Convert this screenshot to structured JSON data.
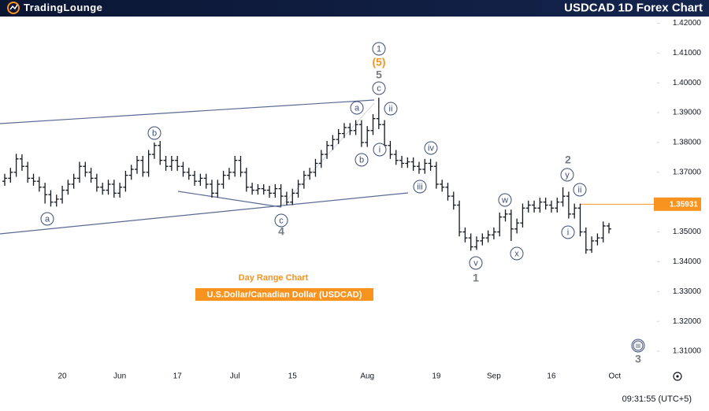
{
  "chart_data": {
    "type": "ohlc",
    "title": "USDCAD 1D Forex Chart",
    "logo": "TradingLounge",
    "subtitle": "Day Range Chart",
    "caption": "U.S.Dollar/Canadian Dollar (USDCAD)",
    "timestamp": "09:31:55 (UTC+5)",
    "color": "#131722",
    "categories": [
      null,
      null,
      null,
      null,
      null,
      null,
      null,
      null,
      null,
      null,
      "20",
      null,
      null,
      null,
      null,
      null,
      null,
      null,
      null,
      null,
      "Jun",
      null,
      null,
      null,
      null,
      null,
      null,
      null,
      null,
      null,
      "17",
      null,
      null,
      null,
      null,
      null,
      null,
      null,
      null,
      null,
      "Jul",
      null,
      null,
      null,
      null,
      null,
      null,
      null,
      null,
      null,
      "15",
      null,
      null,
      null,
      null,
      null,
      null,
      null,
      null,
      null,
      null,
      null,
      null,
      "Aug",
      null,
      null,
      null,
      null,
      null,
      null,
      null,
      null,
      null,
      null,
      null,
      "19",
      null,
      null,
      null,
      null,
      null,
      null,
      null,
      null,
      null,
      "Sep",
      null,
      null,
      null,
      null,
      null,
      null,
      null,
      null,
      null,
      "16",
      null,
      null,
      null,
      null,
      null,
      null,
      null,
      null,
      null,
      null,
      "Oct"
    ],
    "open": [
      1.367,
      1.368,
      1.37,
      1.3745,
      1.372,
      1.368,
      1.367,
      1.365,
      1.3625,
      1.36,
      1.361,
      1.364,
      1.366,
      1.368,
      1.372,
      1.37,
      1.368,
      1.365,
      1.364,
      1.366,
      1.363,
      1.365,
      1.369,
      1.371,
      1.374,
      1.37,
      1.376,
      1.379,
      1.374,
      1.372,
      1.374,
      1.372,
      1.37,
      1.369,
      1.367,
      1.368,
      1.366,
      1.363,
      1.366,
      1.369,
      1.37,
      1.374,
      1.37,
      1.365,
      1.364,
      1.3645,
      1.364,
      1.363,
      1.3645,
      1.362,
      1.36,
      1.363,
      1.366,
      1.369,
      1.37,
      1.373,
      1.376,
      1.379,
      1.381,
      1.383,
      1.385,
      1.384,
      1.386,
      1.38,
      1.384,
      1.388,
      1.386,
      1.379,
      1.376,
      1.374,
      1.373,
      1.3735,
      1.372,
      1.371,
      1.373,
      1.372,
      1.366,
      1.365,
      1.362,
      1.359,
      1.35,
      1.348,
      1.345,
      1.347,
      1.348,
      1.349,
      1.35,
      1.355,
      1.356,
      1.351,
      1.353,
      1.358,
      1.359,
      1.358,
      1.36,
      1.359,
      1.358,
      1.36,
      1.362,
      1.356,
      1.358,
      1.35,
      1.344,
      1.347,
      1.348,
      1.352,
      null
    ],
    "high": [
      1.3695,
      1.3715,
      1.3762,
      1.376,
      1.3735,
      1.3695,
      1.3685,
      1.3665,
      1.364,
      1.3625,
      1.3655,
      1.3675,
      1.3695,
      1.3735,
      1.3735,
      1.3715,
      1.3695,
      1.3665,
      1.3675,
      1.3675,
      1.3665,
      1.3705,
      1.3725,
      1.3755,
      1.3755,
      1.3775,
      1.38,
      1.3805,
      1.3755,
      1.3755,
      1.3755,
      1.3735,
      1.3715,
      1.3705,
      1.3695,
      1.3695,
      1.3675,
      1.3675,
      1.3705,
      1.3715,
      1.3755,
      1.3755,
      1.3715,
      1.3665,
      1.366,
      1.366,
      1.3655,
      1.366,
      1.366,
      1.3635,
      1.3645,
      1.3675,
      1.3705,
      1.3715,
      1.3745,
      1.3775,
      1.3805,
      1.3825,
      1.3845,
      1.3865,
      1.3865,
      1.3875,
      1.3875,
      1.3855,
      1.3895,
      1.395,
      1.3875,
      1.3805,
      1.3775,
      1.3755,
      1.375,
      1.375,
      1.3735,
      1.3745,
      1.3745,
      1.3735,
      1.3675,
      1.3665,
      1.3635,
      1.3605,
      1.3515,
      1.3495,
      1.3485,
      1.3495,
      1.3505,
      1.3515,
      1.3565,
      1.3575,
      1.3575,
      1.3545,
      1.3595,
      1.3605,
      1.3605,
      1.3615,
      1.3615,
      1.3605,
      1.3615,
      1.365,
      1.3635,
      1.3595,
      1.3595,
      1.3515,
      1.3485,
      1.3495,
      1.3535,
      1.353,
      null
    ],
    "low": [
      1.3655,
      1.3665,
      1.3685,
      1.3705,
      1.3665,
      1.3655,
      1.3635,
      1.3595,
      1.3585,
      1.3585,
      1.3595,
      1.3625,
      1.3645,
      1.3665,
      1.3685,
      1.3665,
      1.3635,
      1.3625,
      1.3625,
      1.3615,
      1.3615,
      1.3635,
      1.3675,
      1.3695,
      1.3685,
      1.3685,
      1.3745,
      1.3725,
      1.3705,
      1.3705,
      1.3705,
      1.3685,
      1.3675,
      1.3655,
      1.3655,
      1.3645,
      1.3615,
      1.3615,
      1.3645,
      1.3675,
      1.3685,
      1.3685,
      1.3635,
      1.3625,
      1.3625,
      1.3625,
      1.3615,
      1.3615,
      1.3585,
      1.359,
      1.359,
      1.3615,
      1.3645,
      1.3675,
      1.3685,
      1.3715,
      1.3745,
      1.3775,
      1.3795,
      1.3815,
      1.3825,
      1.3825,
      1.3785,
      1.3785,
      1.3825,
      1.3845,
      1.3775,
      1.3745,
      1.3725,
      1.3715,
      1.3715,
      1.3705,
      1.3695,
      1.3695,
      1.3705,
      1.3645,
      1.3635,
      1.3605,
      1.3575,
      1.3485,
      1.3465,
      1.3437,
      1.344,
      1.3455,
      1.3465,
      1.3475,
      1.3485,
      1.3535,
      1.347,
      1.3495,
      1.3515,
      1.3565,
      1.3565,
      1.3565,
      1.3575,
      1.3565,
      1.3565,
      1.3585,
      1.3545,
      1.3545,
      1.3485,
      1.3427,
      1.343,
      1.3455,
      1.3465,
      1.3495,
      null
    ],
    "close": [
      1.368,
      1.37,
      1.3745,
      1.372,
      1.368,
      1.367,
      1.365,
      1.3625,
      1.36,
      1.361,
      1.364,
      1.366,
      1.368,
      1.372,
      1.37,
      1.368,
      1.365,
      1.364,
      1.366,
      1.363,
      1.365,
      1.369,
      1.371,
      1.374,
      1.37,
      1.376,
      1.379,
      1.374,
      1.372,
      1.374,
      1.372,
      1.37,
      1.369,
      1.367,
      1.368,
      1.366,
      1.363,
      1.366,
      1.369,
      1.37,
      1.374,
      1.37,
      1.365,
      1.364,
      1.3645,
      1.364,
      1.363,
      1.3645,
      1.362,
      1.36,
      1.363,
      1.366,
      1.369,
      1.37,
      1.373,
      1.376,
      1.379,
      1.381,
      1.383,
      1.385,
      1.384,
      1.386,
      1.38,
      1.384,
      1.388,
      1.386,
      1.379,
      1.376,
      1.374,
      1.373,
      1.3735,
      1.372,
      1.371,
      1.373,
      1.372,
      1.366,
      1.365,
      1.362,
      1.359,
      1.35,
      1.348,
      1.345,
      1.347,
      1.348,
      1.349,
      1.35,
      1.355,
      1.356,
      1.351,
      1.353,
      1.358,
      1.359,
      1.358,
      1.36,
      1.359,
      1.358,
      1.36,
      1.362,
      1.356,
      1.358,
      1.35,
      1.344,
      1.347,
      1.348,
      1.352,
      1.351,
      null
    ],
    "ylim": [
      1.305,
      1.4225
    ],
    "yticks": [
      {
        "value": 1.42,
        "label": "1.42000"
      },
      {
        "value": 1.41,
        "label": "1.41000"
      },
      {
        "value": 1.4,
        "label": "1.40000"
      },
      {
        "value": 1.39,
        "label": "1.39000"
      },
      {
        "value": 1.38,
        "label": "1.38000"
      },
      {
        "value": 1.37,
        "label": "1.37000"
      },
      {
        "value": 1.36,
        "label": "1.36000"
      },
      {
        "value": 1.35,
        "label": "1.35000"
      },
      {
        "value": 1.34,
        "label": "1.34000"
      },
      {
        "value": 1.33,
        "label": "1.33000"
      },
      {
        "value": 1.32,
        "label": "1.32000"
      },
      {
        "value": 1.31,
        "label": "1.31000"
      }
    ],
    "last_price": 1.35931,
    "last_price_color": "#f7931e",
    "annotations": [
      "1",
      "(5)",
      "5",
      "c",
      "ii",
      "a",
      "i",
      "b",
      "iv",
      "iii",
      "v",
      "1",
      "w",
      "x",
      "2",
      "y",
      "ii",
      "i",
      "iii",
      "3",
      "b",
      "a",
      "c",
      "4"
    ]
  }
}
